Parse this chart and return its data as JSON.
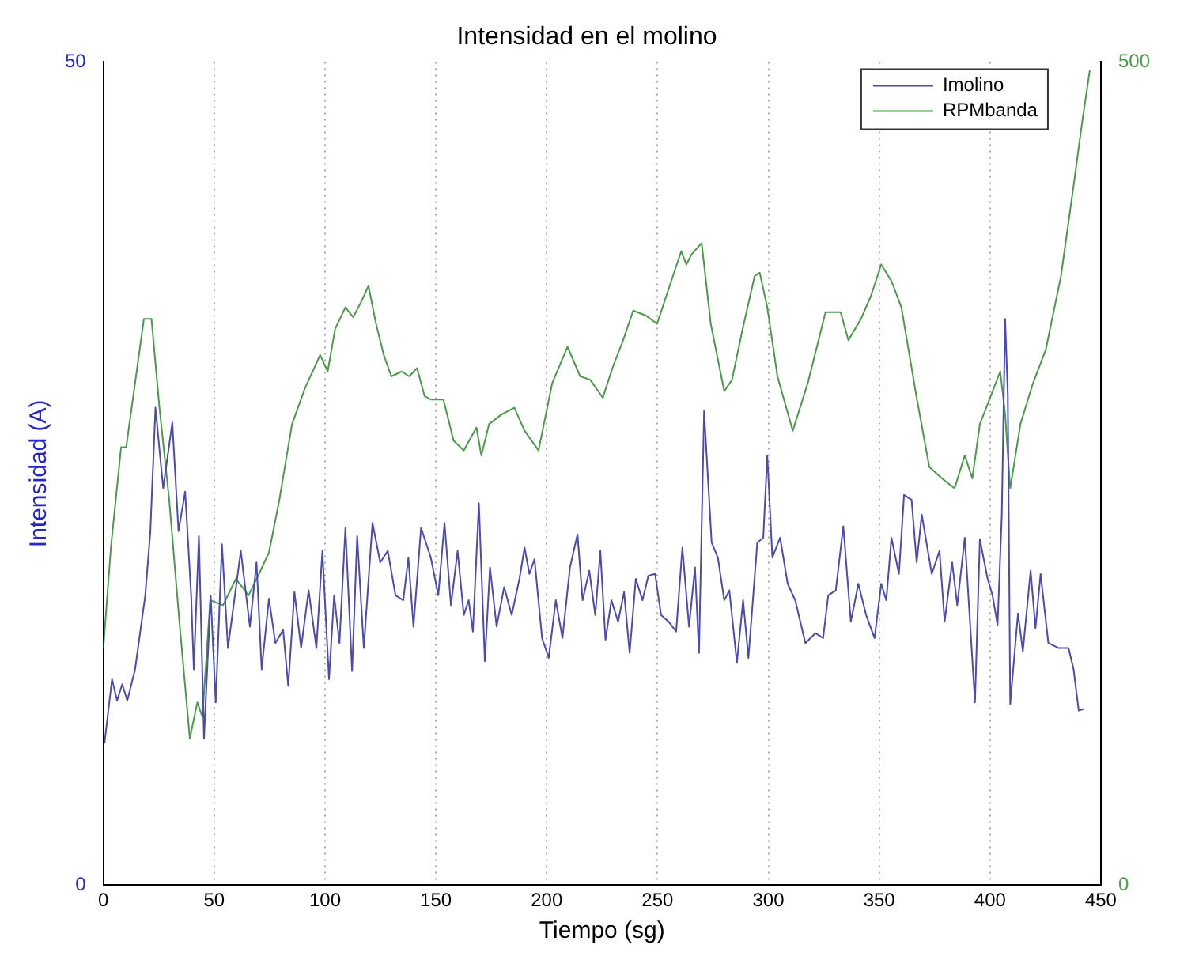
{
  "chart_data": {
    "type": "line",
    "title": "Intensidad en el molino",
    "xlabel": "Tiempo (sg)",
    "ylabel": "Intensidad (A)",
    "xlim": [
      0,
      450
    ],
    "xticks": [
      0,
      50,
      100,
      150,
      200,
      250,
      300,
      350,
      400,
      450
    ],
    "ylim": [
      0,
      50
    ],
    "yticks": [
      0,
      50
    ],
    "y2lim": [
      0,
      500
    ],
    "y2ticks": [
      0,
      500
    ],
    "grid": "x",
    "legend": "top right",
    "marker": "none",
    "line_style": "solid",
    "series": [
      {
        "name": "Imolino",
        "color": "#4b4bb0",
        "x": [
          0.5,
          3.9,
          6.2,
          8.5,
          10.8,
          14.3,
          18.9,
          21.2,
          23.5,
          27,
          31.1,
          33.9,
          36.9,
          39.6,
          40.8,
          43.1,
          45.4,
          48.4,
          50.7,
          53.5,
          56.2,
          62,
          66.1,
          69.1,
          71.4,
          74.7,
          77.6,
          81.1,
          83.4,
          86.2,
          89.2,
          92.6,
          96.1,
          98.8,
          101.8,
          104.1,
          106.5,
          109.2,
          112.2,
          114.5,
          117.5,
          121.4,
          124.9,
          128.3,
          131.8,
          135.3,
          137.6,
          139.9,
          143.3,
          147.7,
          151.1,
          153.9,
          156.8,
          159.8,
          162.6,
          164.8,
          166.7,
          169.4,
          172.1,
          174.4,
          177.4,
          180.8,
          184.2,
          187.7,
          190,
          192.2,
          194.5,
          197.9,
          200.9,
          204.1,
          207.1,
          210.5,
          213.9,
          216.2,
          219.2,
          221.9,
          224.2,
          226.5,
          229.2,
          232.2,
          234.9,
          237.4,
          240.2,
          243.2,
          245.9,
          248.9,
          251.6,
          255,
          258.4,
          261.2,
          264.2,
          266.9,
          268.7,
          271,
          274.4,
          277.2,
          280.1,
          282.4,
          285.8,
          288.6,
          291,
          295,
          297.7,
          299.5,
          301.8,
          305.3,
          308.7,
          312.1,
          316.7,
          321.2,
          324.7,
          327,
          330.4,
          333.8,
          337.2,
          340.6,
          344.1,
          347.9,
          350.9,
          353.2,
          355.5,
          358.9,
          361.2,
          364.6,
          366.9,
          369.2,
          373.7,
          377.2,
          379.5,
          382.9,
          385.2,
          388.6,
          393.2,
          395.4,
          398.9,
          401.1,
          403.4,
          405.3,
          406.8,
          408,
          409.1,
          412.6,
          414.8,
          418.3,
          420.5,
          422.8,
          426.3,
          430.8,
          435.4,
          437.7,
          440,
          442.2
        ],
        "values": [
          8.6,
          12.5,
          11.2,
          12.2,
          11.2,
          13.1,
          17.6,
          21.5,
          29,
          24.1,
          28.1,
          21.5,
          23.9,
          17.6,
          13.1,
          21.2,
          8.9,
          17.6,
          11.1,
          20.7,
          14.4,
          20.3,
          15.7,
          19.6,
          13.1,
          17.4,
          14.7,
          15.5,
          12.1,
          17.8,
          14.4,
          17.9,
          14.4,
          20.3,
          12.5,
          17.6,
          14.7,
          21.7,
          13,
          21.2,
          14.4,
          22,
          19.6,
          20.3,
          17.6,
          17.3,
          19.9,
          15.7,
          21.7,
          19.9,
          17.6,
          22,
          17,
          20.3,
          16.4,
          17.3,
          15.4,
          23.2,
          13.6,
          19.3,
          15.7,
          18.1,
          16.4,
          18.6,
          20.5,
          18.9,
          19.8,
          15,
          13.8,
          17.3,
          15,
          19.3,
          21.3,
          17.3,
          19.1,
          16.4,
          20.3,
          14.9,
          17.3,
          16,
          17.8,
          14.1,
          18.6,
          17.3,
          18.8,
          18.9,
          16.4,
          16,
          15.4,
          20.5,
          15.7,
          19.3,
          14.1,
          28.8,
          20.8,
          19.9,
          17.3,
          17.9,
          13.5,
          17.3,
          13.8,
          20.8,
          21.1,
          26.1,
          19.9,
          21.1,
          18.3,
          17.3,
          14.7,
          15.3,
          15,
          17.6,
          17.9,
          21.8,
          16,
          18.3,
          16.4,
          15,
          18.3,
          17.3,
          21.1,
          18.9,
          23.7,
          23.4,
          19.6,
          22.5,
          18.9,
          20.3,
          16,
          19.6,
          17,
          21.1,
          11.1,
          21,
          18.6,
          17.6,
          15.8,
          22.5,
          34.4,
          29.8,
          11,
          16.5,
          14.2,
          19.1,
          15.6,
          18.9,
          14.7,
          14.4,
          14.4,
          13.1,
          10.6,
          10.7
        ]
      },
      {
        "name": "RPMbanda",
        "color": "#4a9a4a",
        "axis": "y2",
        "x": [
          0,
          3.4,
          8,
          10.3,
          14.3,
          18.3,
          21.7,
          25.3,
          29.7,
          34.3,
          39,
          42.4,
          44.7,
          48.2,
          54,
          59.8,
          65.5,
          70.2,
          74.7,
          79.4,
          85.1,
          91,
          97.8,
          101.2,
          104.6,
          109.2,
          112.7,
          116.2,
          119.6,
          123,
          126.5,
          129.9,
          134.6,
          138,
          141.5,
          144.9,
          147.7,
          153.4,
          158,
          162.6,
          168.3,
          170.5,
          174,
          179.7,
          185.4,
          190,
          196.3,
          202.5,
          209.4,
          215.1,
          219.6,
          225.3,
          229.9,
          234.5,
          239,
          244.7,
          249.8,
          256.2,
          260.7,
          263,
          265.3,
          269.9,
          274,
          280.1,
          283.6,
          288.1,
          293.8,
          296.1,
          299.5,
          304.1,
          311,
          317.8,
          325.8,
          332.6,
          336.1,
          341.8,
          346.3,
          350.9,
          355.5,
          360,
          366.9,
          372.6,
          378.3,
          384,
          388.6,
          392,
          395.4,
          400,
          404.6,
          406.8,
          409.1,
          413.7,
          419.4,
          425.1,
          432,
          437.7,
          441.6,
          445
        ],
        "values": [
          144,
          205,
          266,
          266,
          305,
          344,
          344,
          290,
          234,
          160,
          89,
          111,
          102,
          173,
          170,
          186,
          176,
          189,
          202,
          234,
          280,
          302,
          322,
          312,
          338,
          351,
          345,
          354,
          364,
          341,
          322,
          309,
          312,
          309,
          314,
          297,
          295,
          295,
          270,
          264,
          278,
          261,
          280,
          286,
          290,
          276,
          264,
          305,
          327,
          309,
          307,
          296,
          315,
          331,
          349,
          346,
          341,
          367,
          385,
          377,
          383,
          390,
          341,
          300,
          307,
          336,
          370,
          372,
          351,
          309,
          276,
          305,
          348,
          348,
          331,
          344,
          358,
          377,
          367,
          351,
          296,
          254,
          247,
          241,
          261,
          247,
          280,
          296,
          312,
          286,
          241,
          280,
          305,
          325,
          370,
          425,
          464,
          495
        ]
      }
    ]
  }
}
